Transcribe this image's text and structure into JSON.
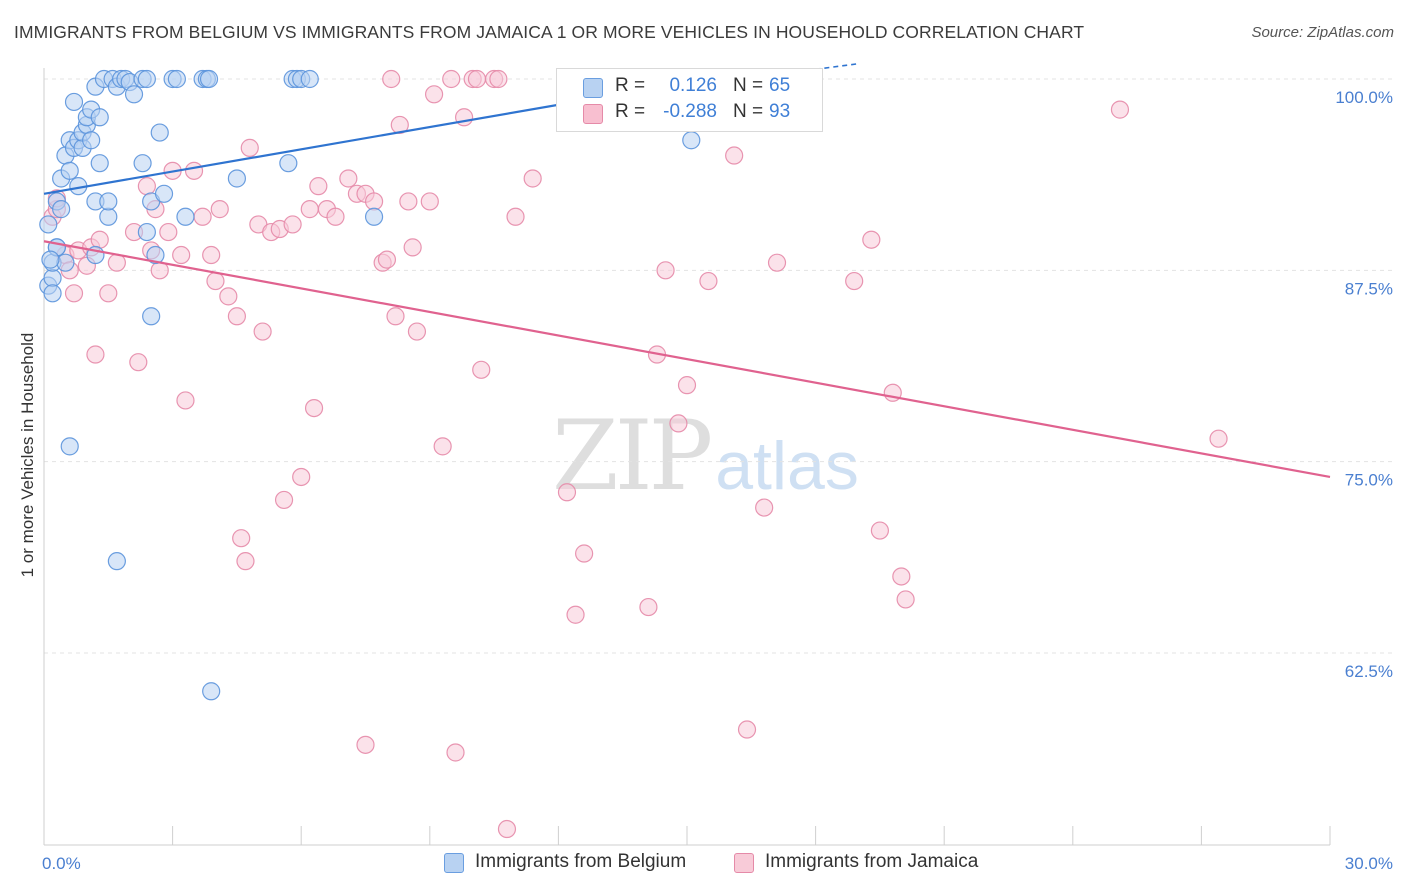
{
  "header": {
    "title": "IMMIGRANTS FROM BELGIUM VS IMMIGRANTS FROM JAMAICA 1 OR MORE VEHICLES IN HOUSEHOLD CORRELATION CHART",
    "source": "Source: ZipAtlas.com"
  },
  "watermark": {
    "zip": "ZIP",
    "atlas": "atlas"
  },
  "legend_top": {
    "rows": [
      {
        "r_label": "R =",
        "r_value": "0.126",
        "n_label": "N =",
        "n_value": "65",
        "color": "#4a86d8",
        "fill": "#b8d2f2"
      },
      {
        "r_label": "R =",
        "r_value": "-0.288",
        "n_label": "N =",
        "n_value": "93",
        "color": "#4a86d8",
        "fill": "#f8bfd0"
      }
    ]
  },
  "legend_bottom": [
    {
      "label": "Immigrants from Belgium",
      "fill": "#b8d2f2",
      "stroke": "#6a9ee0"
    },
    {
      "label": "Immigrants from Jamaica",
      "fill": "#f8cbd8",
      "stroke": "#e58aa8"
    }
  ],
  "chart_data": {
    "type": "scatter",
    "title": "IMMIGRANTS FROM BELGIUM VS IMMIGRANTS FROM JAMAICA 1 OR MORE VEHICLES IN HOUSEHOLD CORRELATION CHART",
    "xlabel": "",
    "ylabel": "1 or more Vehicles in Household",
    "xlim": [
      0,
      30
    ],
    "ylim": [
      52.5,
      101.5
    ],
    "x_tick_labels": [
      "0.0%",
      "30.0%"
    ],
    "y_ticks": [
      62.5,
      75.0,
      87.5,
      100.0
    ],
    "y_tick_labels": [
      "62.5%",
      "75.0%",
      "87.5%",
      "100.0%"
    ],
    "grid": "horizontal-dashed",
    "legend_position": "bottom",
    "series": [
      {
        "name": "Immigrants from Belgium",
        "color": "#4a86d8",
        "fill": "#b8d2f2",
        "r": 0.126,
        "n": 65,
        "trend": {
          "x": [
            0,
            19
          ],
          "y": [
            92.5,
            101.0
          ]
        },
        "trend_dashed": {
          "x": [
            13.0,
            19.0
          ],
          "y": [
            98.8,
            101.0
          ]
        },
        "points": [
          [
            0.1,
            86.5
          ],
          [
            0.2,
            87.0
          ],
          [
            0.2,
            88.0
          ],
          [
            0.1,
            90.5
          ],
          [
            0.3,
            89.0
          ],
          [
            0.3,
            92.0
          ],
          [
            0.4,
            93.5
          ],
          [
            0.5,
            95.0
          ],
          [
            0.6,
            94.0
          ],
          [
            0.6,
            96.0
          ],
          [
            0.7,
            95.5
          ],
          [
            0.8,
            93.0
          ],
          [
            0.8,
            96.0
          ],
          [
            0.9,
            95.5
          ],
          [
            0.9,
            96.5
          ],
          [
            1.0,
            97.0
          ],
          [
            1.0,
            97.5
          ],
          [
            1.1,
            96.0
          ],
          [
            1.1,
            98.0
          ],
          [
            0.7,
            98.5
          ],
          [
            1.2,
            92.0
          ],
          [
            1.3,
            94.5
          ],
          [
            1.3,
            97.5
          ],
          [
            1.2,
            99.5
          ],
          [
            1.4,
            100.0
          ],
          [
            1.6,
            100.0
          ],
          [
            1.7,
            99.5
          ],
          [
            1.8,
            100.0
          ],
          [
            1.9,
            100.0
          ],
          [
            2.0,
            99.8
          ],
          [
            2.1,
            99.0
          ],
          [
            2.3,
            100.0
          ],
          [
            2.4,
            100.0
          ],
          [
            3.0,
            100.0
          ],
          [
            3.1,
            100.0
          ],
          [
            3.7,
            100.0
          ],
          [
            3.8,
            100.0
          ],
          [
            3.85,
            100.0
          ],
          [
            5.8,
            100.0
          ],
          [
            5.9,
            100.0
          ],
          [
            6.0,
            100.0
          ],
          [
            6.2,
            100.0
          ],
          [
            1.5,
            91.0
          ],
          [
            1.5,
            92.0
          ],
          [
            2.3,
            94.5
          ],
          [
            2.4,
            90.0
          ],
          [
            2.5,
            92.0
          ],
          [
            2.7,
            96.5
          ],
          [
            2.8,
            92.5
          ],
          [
            3.3,
            91.0
          ],
          [
            4.5,
            93.5
          ],
          [
            5.7,
            94.5
          ],
          [
            7.7,
            91.0
          ],
          [
            15.1,
            96.0
          ],
          [
            0.5,
            88.0
          ],
          [
            1.2,
            88.5
          ],
          [
            0.3,
            89.0
          ],
          [
            0.15,
            88.2
          ],
          [
            2.5,
            84.5
          ],
          [
            0.6,
            76.0
          ],
          [
            1.7,
            68.5
          ],
          [
            3.9,
            60.0
          ],
          [
            0.2,
            86.0
          ],
          [
            0.4,
            91.5
          ],
          [
            2.6,
            88.5
          ]
        ]
      },
      {
        "name": "Immigrants from Jamaica",
        "color": "#e0628f",
        "fill": "#f8cbd8",
        "r": -0.288,
        "n": 93,
        "trend": {
          "x": [
            0,
            30
          ],
          "y": [
            89.4,
            74.0
          ]
        },
        "points": [
          [
            0.2,
            91.0
          ],
          [
            0.3,
            91.5
          ],
          [
            0.3,
            92.2
          ],
          [
            0.5,
            88.5
          ],
          [
            0.6,
            87.5
          ],
          [
            0.7,
            86.0
          ],
          [
            0.8,
            88.8
          ],
          [
            1.0,
            87.8
          ],
          [
            1.1,
            89.0
          ],
          [
            1.2,
            82.0
          ],
          [
            1.3,
            89.5
          ],
          [
            1.5,
            86.0
          ],
          [
            1.7,
            88.0
          ],
          [
            2.1,
            90.0
          ],
          [
            2.2,
            81.5
          ],
          [
            2.4,
            93.0
          ],
          [
            2.5,
            88.8
          ],
          [
            2.6,
            91.5
          ],
          [
            2.7,
            87.5
          ],
          [
            2.9,
            90.0
          ],
          [
            3.0,
            94.0
          ],
          [
            3.2,
            88.5
          ],
          [
            3.3,
            79.0
          ],
          [
            3.5,
            94.0
          ],
          [
            3.7,
            91.0
          ],
          [
            3.9,
            88.5
          ],
          [
            4.0,
            86.8
          ],
          [
            4.1,
            91.5
          ],
          [
            4.3,
            85.8
          ],
          [
            4.5,
            84.5
          ],
          [
            4.6,
            70.0
          ],
          [
            4.7,
            68.5
          ],
          [
            4.8,
            95.5
          ],
          [
            5.0,
            90.5
          ],
          [
            5.1,
            83.5
          ],
          [
            5.3,
            90.0
          ],
          [
            5.5,
            90.2
          ],
          [
            5.6,
            72.5
          ],
          [
            5.8,
            90.5
          ],
          [
            6.0,
            74.0
          ],
          [
            6.2,
            91.5
          ],
          [
            6.3,
            78.5
          ],
          [
            6.4,
            93.0
          ],
          [
            6.6,
            91.5
          ],
          [
            6.8,
            91.0
          ],
          [
            7.1,
            93.5
          ],
          [
            7.3,
            92.5
          ],
          [
            7.5,
            92.5
          ],
          [
            7.7,
            92.0
          ],
          [
            7.5,
            56.5
          ],
          [
            7.9,
            88.0
          ],
          [
            8.0,
            88.2
          ],
          [
            8.1,
            100.0
          ],
          [
            8.2,
            84.5
          ],
          [
            8.3,
            97.0
          ],
          [
            8.5,
            92.0
          ],
          [
            8.6,
            89.0
          ],
          [
            8.7,
            83.5
          ],
          [
            9.0,
            92.0
          ],
          [
            9.1,
            99.0
          ],
          [
            9.3,
            76.0
          ],
          [
            9.5,
            100.0
          ],
          [
            9.6,
            56.0
          ],
          [
            9.8,
            97.5
          ],
          [
            10.0,
            100.0
          ],
          [
            10.1,
            100.0
          ],
          [
            10.2,
            81.0
          ],
          [
            10.5,
            100.0
          ],
          [
            10.6,
            100.0
          ],
          [
            10.8,
            51.0
          ],
          [
            11.0,
            91.0
          ],
          [
            11.4,
            93.5
          ],
          [
            12.2,
            73.0
          ],
          [
            12.4,
            65.0
          ],
          [
            12.6,
            69.0
          ],
          [
            14.1,
            65.5
          ],
          [
            14.3,
            82.0
          ],
          [
            14.5,
            87.5
          ],
          [
            14.8,
            77.5
          ],
          [
            15.0,
            80.0
          ],
          [
            15.5,
            86.8
          ],
          [
            16.1,
            95.0
          ],
          [
            16.4,
            57.5
          ],
          [
            16.8,
            72.0
          ],
          [
            17.1,
            88.0
          ],
          [
            18.9,
            86.8
          ],
          [
            19.3,
            89.5
          ],
          [
            19.5,
            70.5
          ],
          [
            19.8,
            79.5
          ],
          [
            20.0,
            67.5
          ],
          [
            20.1,
            66.0
          ],
          [
            25.1,
            98.0
          ],
          [
            27.4,
            76.5
          ]
        ]
      }
    ]
  }
}
